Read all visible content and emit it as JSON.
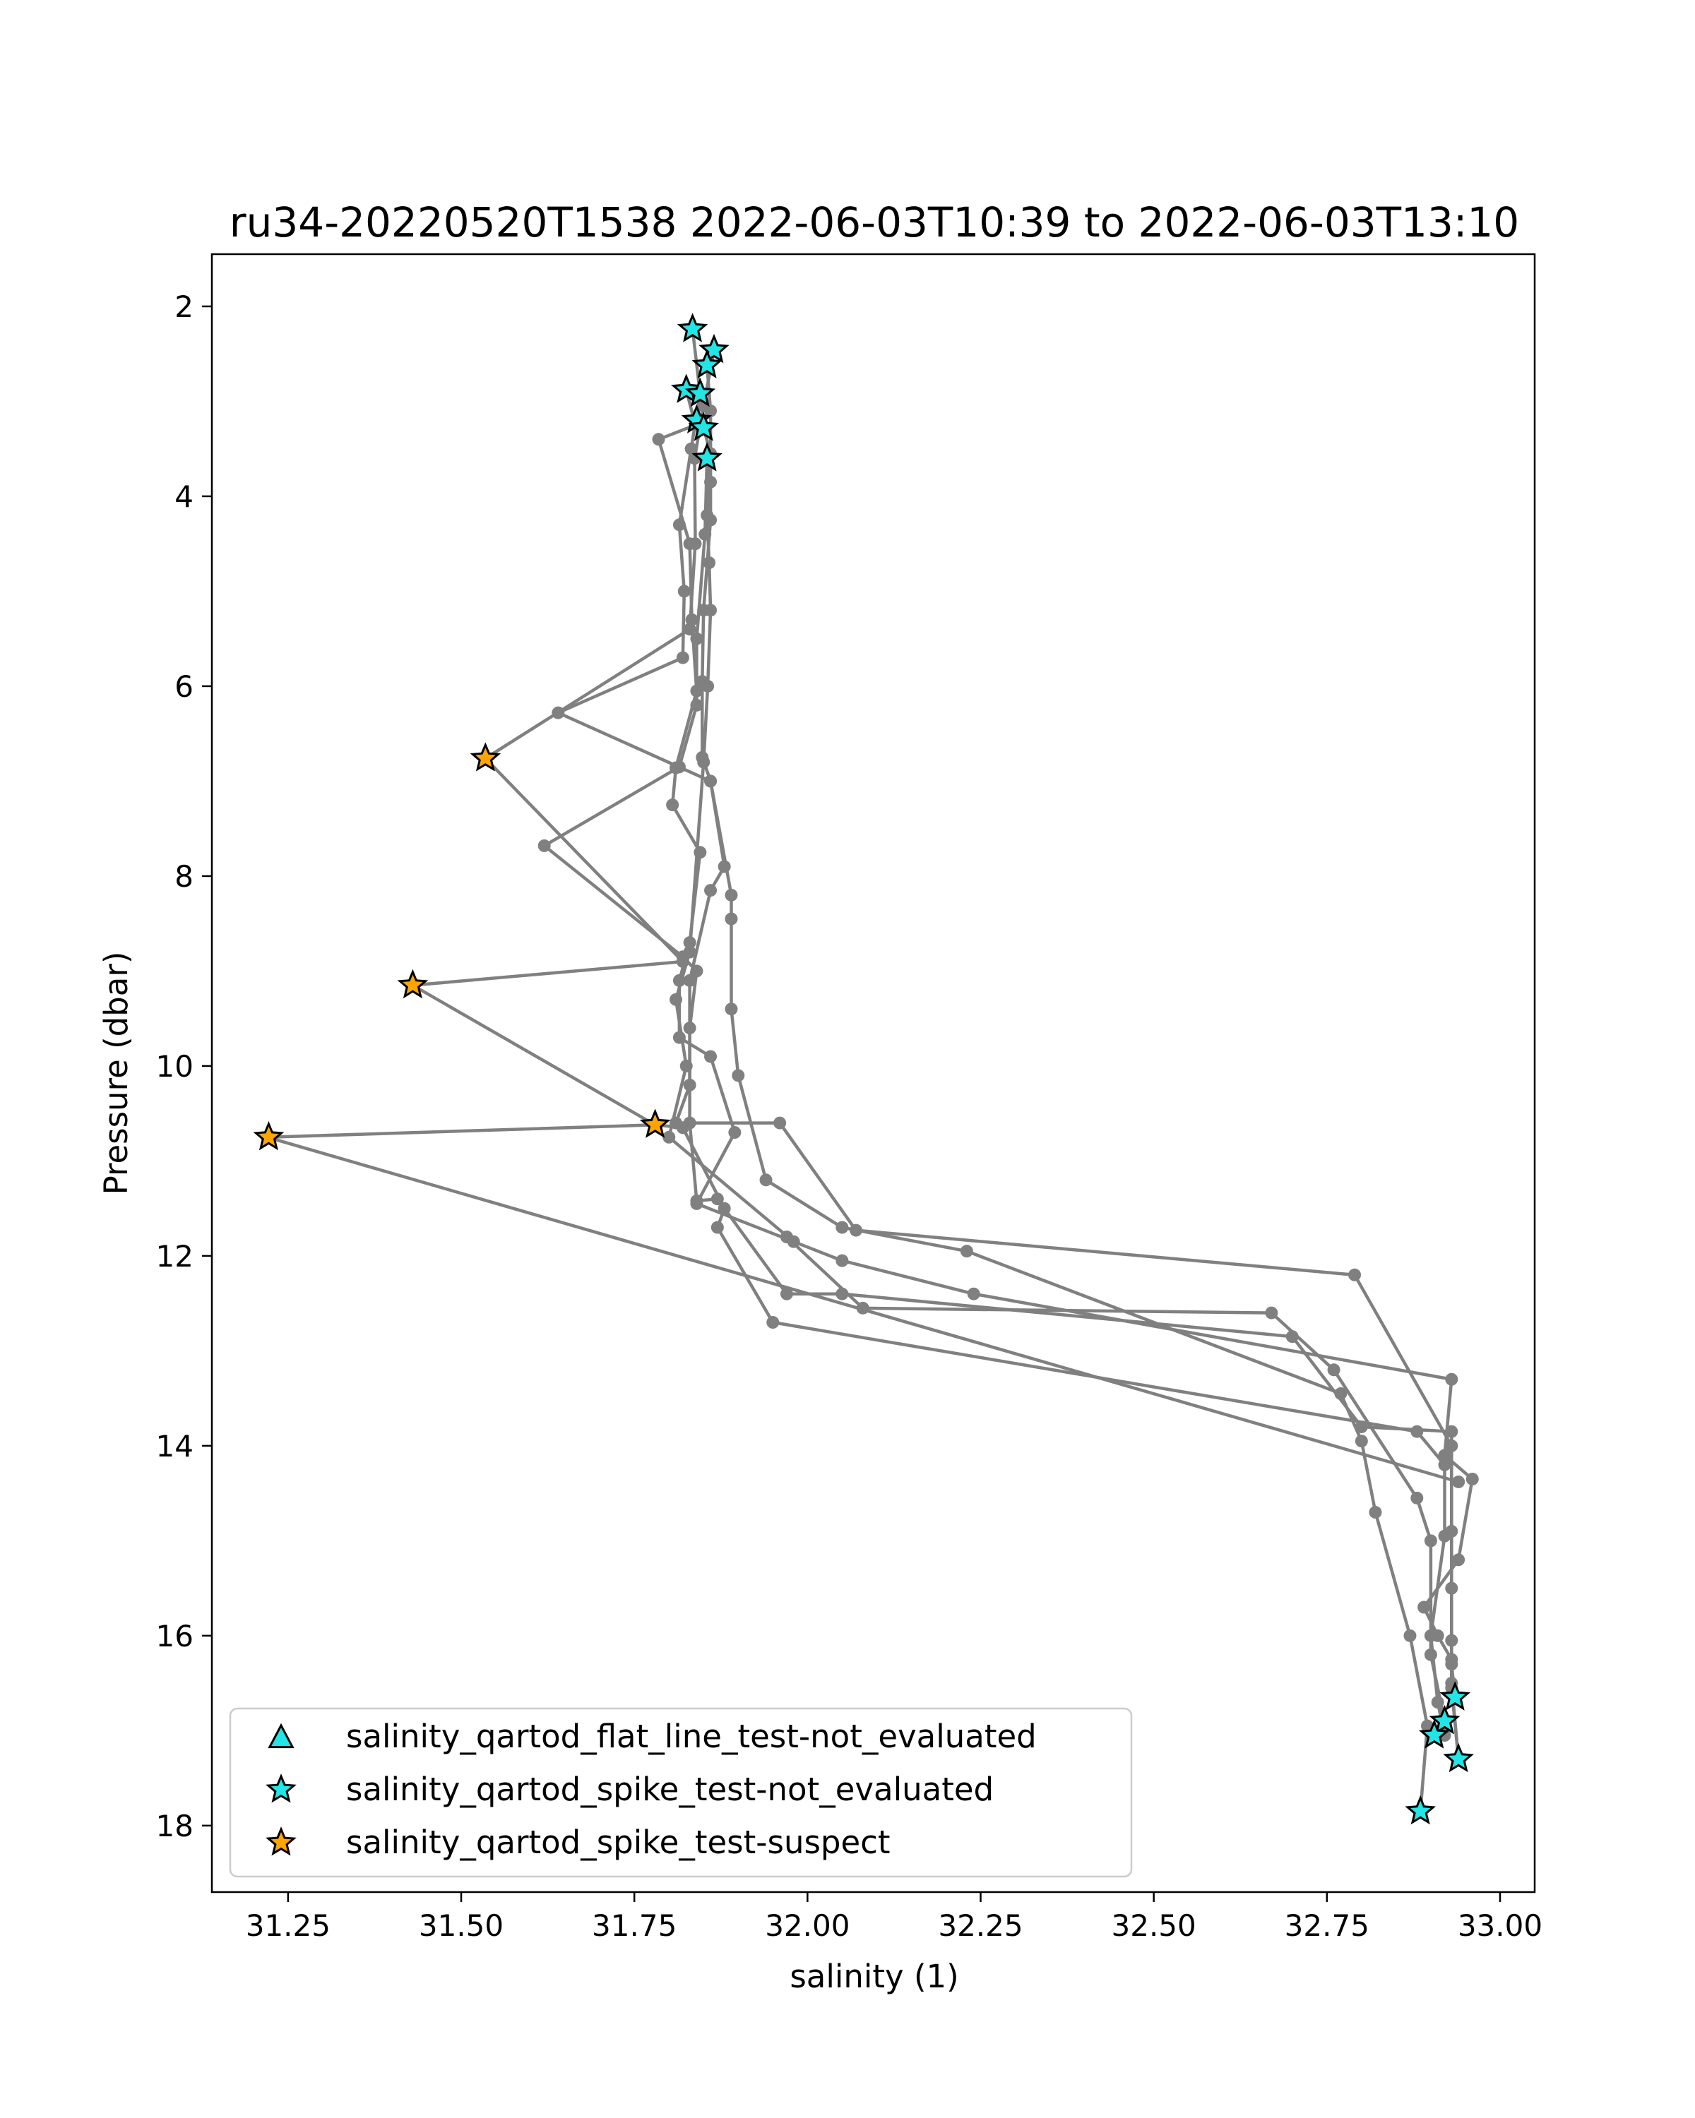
{
  "chart_data": {
    "type": "scatter",
    "title": "ru34-20220520T1538 2022-06-03T10:39 to 2022-06-03T13:10",
    "xlabel": "salinity (1)",
    "ylabel": "Pressure (dbar)",
    "xlim": [
      31.14,
      33.05
    ],
    "ylim": [
      18.7,
      1.45
    ],
    "y_inverted": true,
    "grid": false,
    "legend_placement": "lower-left",
    "x_ticks": [
      {
        "value": 31.25,
        "label": "31.25"
      },
      {
        "value": 31.5,
        "label": "31.50"
      },
      {
        "value": 31.75,
        "label": "31.75"
      },
      {
        "value": 32.0,
        "label": "32.00"
      },
      {
        "value": 32.25,
        "label": "32.25"
      },
      {
        "value": 32.5,
        "label": "32.50"
      },
      {
        "value": 32.75,
        "label": "32.75"
      },
      {
        "value": 33.0,
        "label": "33.00"
      }
    ],
    "y_ticks": [
      {
        "value": 2,
        "label": "2"
      },
      {
        "value": 4,
        "label": "4"
      },
      {
        "value": 6,
        "label": "6"
      },
      {
        "value": 8,
        "label": "8"
      },
      {
        "value": 10,
        "label": "10"
      },
      {
        "value": 12,
        "label": "12"
      },
      {
        "value": 14,
        "label": "14"
      },
      {
        "value": 16,
        "label": "16"
      },
      {
        "value": 18,
        "label": "18"
      }
    ],
    "line_color": "#808080",
    "profiles": [
      [
        [
          31.834,
          2.24
        ],
        [
          31.845,
          2.92
        ],
        [
          31.832,
          3.5
        ],
        [
          31.815,
          4.3
        ],
        [
          31.822,
          5.0
        ],
        [
          31.82,
          5.7
        ],
        [
          31.64,
          6.28
        ],
        [
          31.86,
          7.0
        ],
        [
          31.89,
          8.2
        ],
        [
          31.89,
          8.45
        ],
        [
          31.89,
          9.4
        ],
        [
          31.9,
          10.1
        ],
        [
          31.94,
          11.2
        ],
        [
          32.05,
          11.7
        ],
        [
          32.23,
          11.95
        ],
        [
          32.77,
          13.45
        ],
        [
          32.8,
          13.95
        ],
        [
          32.82,
          14.7
        ],
        [
          32.87,
          16.0
        ],
        [
          32.895,
          16.95
        ],
        [
          32.885,
          17.85
        ]
      ],
      [
        [
          31.865,
          2.46
        ],
        [
          31.85,
          3.05
        ],
        [
          31.837,
          3.6
        ],
        [
          31.838,
          4.5
        ],
        [
          31.83,
          5.4
        ],
        [
          31.535,
          6.76
        ],
        [
          31.82,
          8.9
        ],
        [
          31.43,
          9.15
        ],
        [
          31.78,
          10.62
        ],
        [
          31.82,
          10.65
        ],
        [
          31.88,
          11.5
        ],
        [
          31.87,
          11.7
        ],
        [
          31.95,
          12.7
        ],
        [
          32.88,
          13.85
        ],
        [
          32.92,
          14.2
        ],
        [
          32.92,
          14.95
        ],
        [
          32.9,
          16.0
        ],
        [
          32.91,
          16.7
        ],
        [
          32.92,
          17.05
        ]
      ],
      [
        [
          31.855,
          2.62
        ],
        [
          31.86,
          3.1
        ],
        [
          31.86,
          3.85
        ],
        [
          31.86,
          4.25
        ],
        [
          31.85,
          5.2
        ],
        [
          31.848,
          5.95
        ],
        [
          31.848,
          6.75
        ],
        [
          31.86,
          7.0
        ],
        [
          31.88,
          7.9
        ],
        [
          31.86,
          8.15
        ],
        [
          31.83,
          9.1
        ],
        [
          31.83,
          10.6
        ],
        [
          31.84,
          11.42
        ],
        [
          31.87,
          11.4
        ],
        [
          31.97,
          12.4
        ],
        [
          32.05,
          12.4
        ],
        [
          32.7,
          12.85
        ],
        [
          32.8,
          13.8
        ],
        [
          32.93,
          13.85
        ],
        [
          32.93,
          14.9
        ],
        [
          32.93,
          16.05
        ],
        [
          32.93,
          16.5
        ],
        [
          32.94,
          17.3
        ]
      ],
      [
        [
          31.825,
          2.88
        ],
        [
          31.838,
          3.25
        ],
        [
          31.785,
          3.4
        ],
        [
          31.83,
          4.5
        ],
        [
          31.833,
          5.3
        ],
        [
          31.84,
          6.05
        ],
        [
          31.81,
          6.86
        ],
        [
          31.805,
          7.25
        ],
        [
          31.845,
          7.75
        ],
        [
          31.83,
          8.7
        ],
        [
          31.815,
          9.1
        ],
        [
          31.815,
          9.7
        ],
        [
          31.86,
          9.9
        ],
        [
          31.895,
          10.7
        ],
        [
          31.84,
          11.45
        ],
        [
          32.05,
          12.05
        ],
        [
          32.24,
          12.4
        ],
        [
          32.93,
          13.3
        ],
        [
          32.92,
          14.1
        ],
        [
          32.96,
          14.35
        ],
        [
          32.94,
          15.2
        ],
        [
          32.89,
          15.7
        ],
        [
          32.91,
          16.0
        ],
        [
          32.93,
          16.25
        ],
        [
          32.93,
          16.55
        ],
        [
          32.94,
          17.3
        ]
      ],
      [
        [
          31.85,
          3.28
        ],
        [
          31.86,
          3.55
        ],
        [
          31.855,
          4.2
        ],
        [
          31.858,
          4.7
        ],
        [
          31.86,
          5.2
        ],
        [
          31.856,
          6.0
        ],
        [
          31.85,
          6.8
        ],
        [
          31.83,
          8.8
        ],
        [
          31.81,
          9.3
        ],
        [
          31.825,
          10.0
        ],
        [
          31.8,
          10.75
        ],
        [
          31.98,
          11.85
        ],
        [
          31.97,
          11.8
        ],
        [
          32.08,
          12.55
        ],
        [
          32.67,
          12.6
        ],
        [
          32.76,
          13.2
        ],
        [
          32.88,
          14.55
        ],
        [
          32.9,
          15.0
        ],
        [
          32.9,
          16.2
        ],
        [
          32.92,
          16.9
        ]
      ],
      [
        [
          31.855,
          3.6
        ],
        [
          31.852,
          4.4
        ],
        [
          31.84,
          5.5
        ],
        [
          31.84,
          6.2
        ],
        [
          31.815,
          6.85
        ],
        [
          31.62,
          7.68
        ],
        [
          31.82,
          8.85
        ],
        [
          31.84,
          9.0
        ],
        [
          31.83,
          9.6
        ],
        [
          31.83,
          10.2
        ],
        [
          31.81,
          10.6
        ],
        [
          31.96,
          10.6
        ],
        [
          32.07,
          11.73
        ],
        [
          32.79,
          12.2
        ],
        [
          32.93,
          14.0
        ],
        [
          32.93,
          15.5
        ],
        [
          32.93,
          16.3
        ],
        [
          32.935,
          16.65
        ]
      ],
      [
        [
          31.222,
          10.75
        ],
        [
          31.78,
          10.62
        ]
      ],
      [
        [
          31.22,
          10.75
        ],
        [
          32.94,
          14.38
        ]
      ]
    ],
    "series": [
      {
        "name": "salinity_qartod_flat_line_test-not_evaluated",
        "marker": "triangle",
        "color": "#22e5e5",
        "points": []
      },
      {
        "name": "salinity_qartod_spike_test-not_evaluated",
        "marker": "star",
        "color": "#22e5e5",
        "points": [
          [
            31.834,
            2.24
          ],
          [
            31.865,
            2.46
          ],
          [
            31.855,
            2.62
          ],
          [
            31.825,
            2.88
          ],
          [
            31.845,
            2.92
          ],
          [
            31.84,
            3.2
          ],
          [
            31.85,
            3.28
          ],
          [
            31.855,
            3.6
          ],
          [
            32.935,
            16.65
          ],
          [
            32.92,
            16.9
          ],
          [
            32.905,
            17.05
          ],
          [
            32.94,
            17.3
          ],
          [
            32.885,
            17.85
          ]
        ]
      },
      {
        "name": "salinity_qartod_spike_test-suspect",
        "marker": "star",
        "color": "#ffa500",
        "points": [
          [
            31.535,
            6.76
          ],
          [
            31.43,
            9.15
          ],
          [
            31.222,
            10.75
          ],
          [
            31.78,
            10.62
          ]
        ]
      }
    ]
  }
}
